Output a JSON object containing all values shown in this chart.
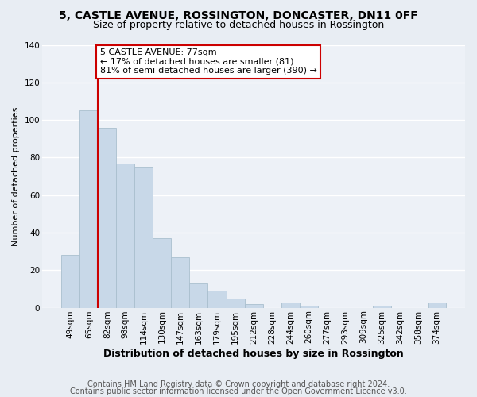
{
  "title1": "5, CASTLE AVENUE, ROSSINGTON, DONCASTER, DN11 0FF",
  "title2": "Size of property relative to detached houses in Rossington",
  "xlabel": "Distribution of detached houses by size in Rossington",
  "ylabel": "Number of detached properties",
  "categories": [
    "49sqm",
    "65sqm",
    "82sqm",
    "98sqm",
    "114sqm",
    "130sqm",
    "147sqm",
    "163sqm",
    "179sqm",
    "195sqm",
    "212sqm",
    "228sqm",
    "244sqm",
    "260sqm",
    "277sqm",
    "293sqm",
    "309sqm",
    "325sqm",
    "342sqm",
    "358sqm",
    "374sqm"
  ],
  "values": [
    28,
    105,
    96,
    77,
    75,
    37,
    27,
    13,
    9,
    5,
    2,
    0,
    3,
    1,
    0,
    0,
    0,
    1,
    0,
    0,
    3
  ],
  "bar_color": "#c8d8e8",
  "bar_edge_color": "#aabfce",
  "highlight_line_color": "#cc0000",
  "annotation_title": "5 CASTLE AVENUE: 77sqm",
  "annotation_line1": "← 17% of detached houses are smaller (81)",
  "annotation_line2": "81% of semi-detached houses are larger (390) →",
  "annotation_box_facecolor": "#ffffff",
  "annotation_box_edgecolor": "#cc0000",
  "ylim": [
    0,
    140
  ],
  "yticks": [
    0,
    20,
    40,
    60,
    80,
    100,
    120,
    140
  ],
  "footer1": "Contains HM Land Registry data © Crown copyright and database right 2024.",
  "footer2": "Contains public sector information licensed under the Open Government Licence v3.0.",
  "background_color": "#e8edf3",
  "plot_background_color": "#edf1f7",
  "grid_color": "#ffffff",
  "title1_fontsize": 10,
  "title2_fontsize": 9,
  "xlabel_fontsize": 9,
  "ylabel_fontsize": 8,
  "tick_fontsize": 7.5,
  "footer_fontsize": 7,
  "annotation_fontsize": 8
}
